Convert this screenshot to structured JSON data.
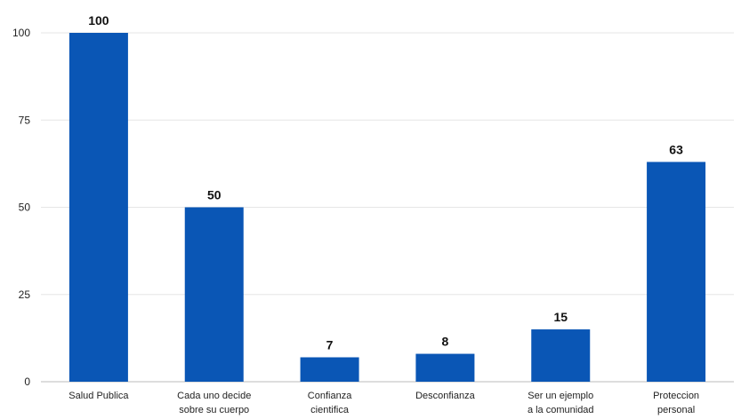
{
  "chart_data": {
    "type": "bar",
    "categories": [
      [
        "Salud Publica"
      ],
      [
        "Cada uno decide",
        "sobre su cuerpo"
      ],
      [
        "Confianza",
        "cientifica"
      ],
      [
        "Desconfianza"
      ],
      [
        "Ser un ejemplo",
        "a la comunidad"
      ],
      [
        "Proteccion",
        "personal"
      ]
    ],
    "values": [
      100,
      50,
      7,
      8,
      15,
      63
    ],
    "data_labels": [
      "100",
      "50",
      "7",
      "8",
      "15",
      "63"
    ],
    "ylim": [
      0,
      100
    ],
    "yticks": [
      0,
      25,
      50,
      75,
      100
    ],
    "grid": true,
    "bar_color": "#0a56b5"
  }
}
